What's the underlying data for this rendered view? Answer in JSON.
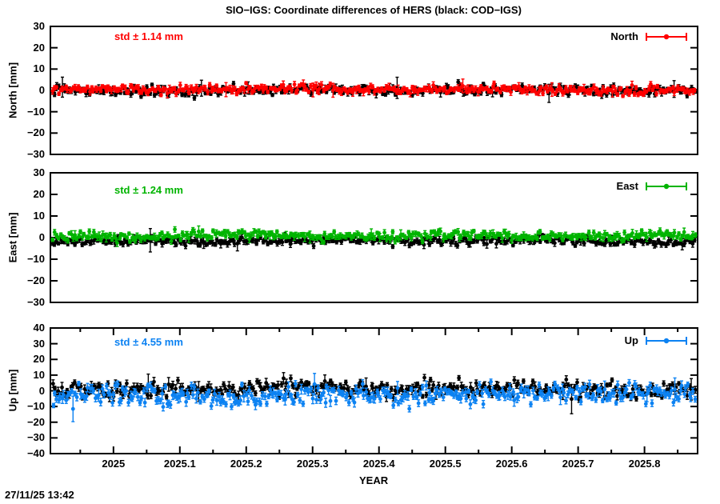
{
  "page": {
    "title": "SIO−IGS: Coordinate differences of HERS (black: COD−IGS)",
    "timestamp": "27/11/25 13:42"
  },
  "x": {
    "label": "YEAR",
    "lim": [
      2024.905,
      2025.88
    ],
    "tick_values": [
      2025,
      2025.1,
      2025.2,
      2025.3,
      2025.4,
      2025.5,
      2025.6,
      2025.7,
      2025.8
    ],
    "tick_labels": [
      "2025",
      "2025.1",
      "2025.2",
      "2025.3",
      "2025.4",
      "2025.5",
      "2025.6",
      "2025.7",
      "2025.8"
    ],
    "minor_step": 0.05
  },
  "chart_data": [
    {
      "type": "scatter",
      "ylabel": "North [mm]",
      "ylim": [
        -30,
        30
      ],
      "ytick_values": [
        30,
        20,
        10,
        0,
        -10,
        -20,
        -30
      ],
      "ytick_labels": [
        "30",
        "20",
        "10",
        "0",
        "−10",
        "−20",
        "−30"
      ],
      "std_label": "std ± 1.14 mm",
      "std_value_mm": 1.14,
      "legend_label": "North",
      "grid": false,
      "series": [
        {
          "name": "COD-IGS",
          "color": "#000000",
          "mean_mm": 0.0,
          "scatter_std_mm": 1.15,
          "wave_amp_mm": 0.5,
          "err_base_mm": 0.7,
          "err_var_mm": 0.5,
          "spike_prob": 0.02,
          "n_points": 350,
          "seed": 101
        },
        {
          "name": "SIO-IGS",
          "color": "#ff0000",
          "mean_mm": 0.35,
          "scatter_std_mm": 1.0,
          "wave_amp_mm": 0.55,
          "err_base_mm": 0.7,
          "err_var_mm": 0.5,
          "spike_prob": 0.02,
          "n_points": 350,
          "seed": 202
        }
      ]
    },
    {
      "type": "scatter",
      "ylabel": "East [mm]",
      "ylim": [
        -30,
        30
      ],
      "ytick_values": [
        30,
        20,
        10,
        0,
        -10,
        -20,
        -30
      ],
      "ytick_labels": [
        "30",
        "20",
        "10",
        "0",
        "−10",
        "−20",
        "−30"
      ],
      "std_label": "std ± 1.24 mm",
      "std_value_mm": 1.24,
      "legend_label": "East",
      "grid": false,
      "series": [
        {
          "name": "COD-IGS",
          "color": "#000000",
          "mean_mm": -1.7,
          "scatter_std_mm": 0.95,
          "wave_amp_mm": 0.5,
          "err_base_mm": 0.7,
          "err_var_mm": 0.5,
          "spike_prob": 0.02,
          "n_points": 350,
          "seed": 303
        },
        {
          "name": "SIO-IGS",
          "color": "#00b400",
          "mean_mm": 0.8,
          "scatter_std_mm": 1.0,
          "wave_amp_mm": 0.6,
          "err_base_mm": 0.7,
          "err_var_mm": 0.5,
          "spike_prob": 0.02,
          "n_points": 350,
          "seed": 404
        }
      ]
    },
    {
      "type": "scatter",
      "ylabel": "Up [mm]",
      "ylim": [
        -40,
        40
      ],
      "ytick_values": [
        40,
        30,
        20,
        10,
        0,
        -10,
        -20,
        -30,
        -40
      ],
      "ytick_labels": [
        "40",
        "30",
        "20",
        "10",
        "0",
        "−10",
        "−20",
        "−30",
        "−40"
      ],
      "std_label": "std ± 4.55 mm",
      "std_value_mm": 4.55,
      "legend_label": "Up",
      "grid": false,
      "series": [
        {
          "name": "COD-IGS",
          "color": "#000000",
          "mean_mm": 0.8,
          "scatter_std_mm": 2.6,
          "wave_amp_mm": 1.6,
          "err_base_mm": 1.2,
          "err_var_mm": 0.9,
          "spike_prob": 0.03,
          "n_points": 350,
          "seed": 505
        },
        {
          "name": "SIO-IGS",
          "color": "#0c82f2",
          "mean_mm": -2.2,
          "scatter_std_mm": 3.1,
          "wave_amp_mm": 2.2,
          "err_base_mm": 1.3,
          "err_var_mm": 1.0,
          "spike_prob": 0.03,
          "n_points": 350,
          "seed": 606
        }
      ]
    }
  ]
}
